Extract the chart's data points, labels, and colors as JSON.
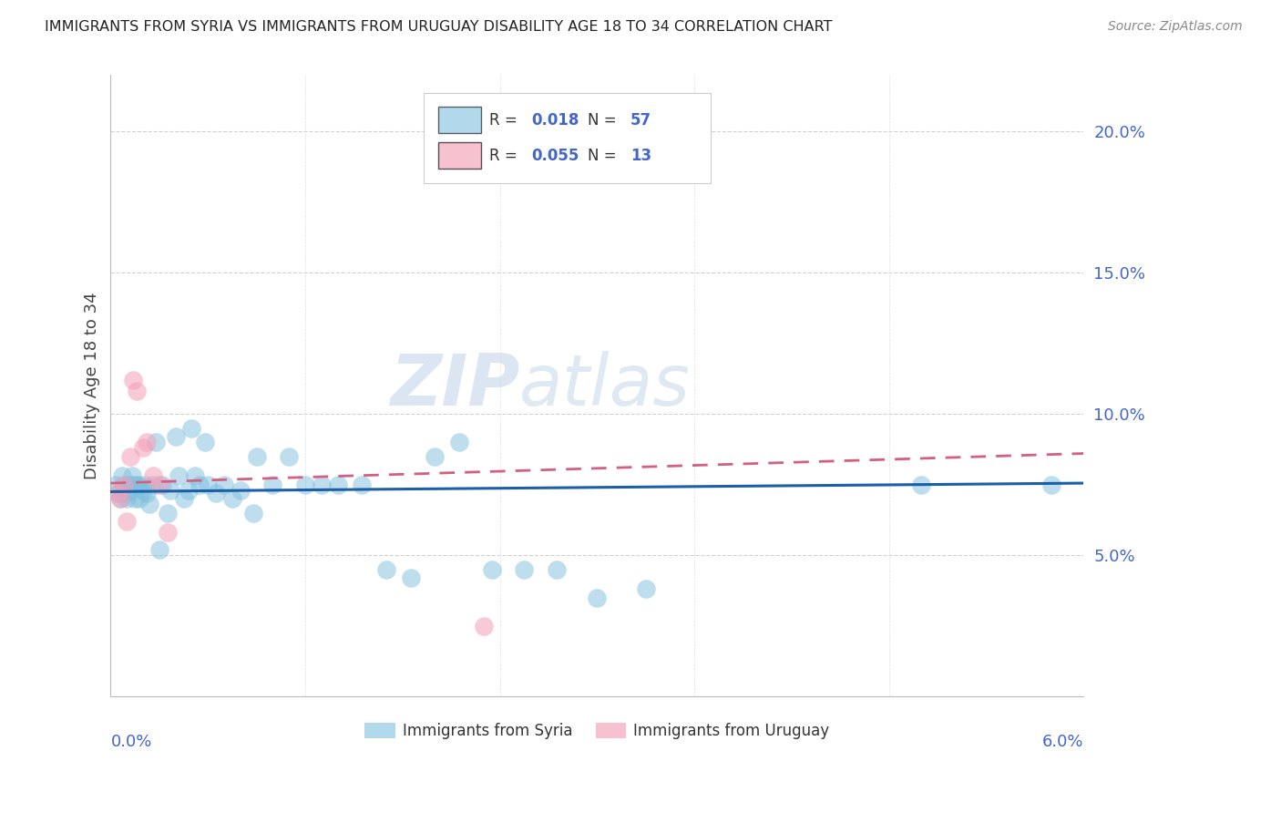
{
  "title": "IMMIGRANTS FROM SYRIA VS IMMIGRANTS FROM URUGUAY DISABILITY AGE 18 TO 34 CORRELATION CHART",
  "source": "Source: ZipAtlas.com",
  "ylabel": "Disability Age 18 to 34",
  "watermark_zip": "ZIP",
  "watermark_atlas": "atlas",
  "xlim": [
    0.0,
    6.0
  ],
  "ylim": [
    0.0,
    22.0
  ],
  "yticks": [
    5.0,
    10.0,
    15.0,
    20.0
  ],
  "syria_R": 0.018,
  "syria_N": 57,
  "uruguay_R": 0.055,
  "uruguay_N": 13,
  "syria_color": "#7fbfdf",
  "uruguay_color": "#f4a0b8",
  "syria_line_color": "#1a5fa8",
  "uruguay_line_color": "#d45f80",
  "axis_color": "#4466cc",
  "syria_trend_x0": 0.0,
  "syria_trend_y0": 7.25,
  "syria_trend_x1": 6.0,
  "syria_trend_y1": 7.55,
  "uruguay_trend_x0": 0.0,
  "uruguay_trend_y0": 7.55,
  "uruguay_trend_x1": 6.0,
  "uruguay_trend_y1": 8.6,
  "syria_dots_x": [
    0.03,
    0.05,
    0.06,
    0.07,
    0.08,
    0.09,
    0.1,
    0.11,
    0.12,
    0.13,
    0.14,
    0.15,
    0.16,
    0.17,
    0.18,
    0.2,
    0.21,
    0.22,
    0.24,
    0.26,
    0.28,
    0.3,
    0.32,
    0.35,
    0.37,
    0.4,
    0.42,
    0.45,
    0.48,
    0.5,
    0.52,
    0.55,
    0.58,
    0.6,
    0.65,
    0.7,
    0.75,
    0.8,
    0.88,
    0.9,
    1.0,
    1.1,
    1.2,
    1.3,
    1.4,
    1.55,
    1.7,
    1.85,
    2.0,
    2.15,
    2.35,
    2.55,
    2.75,
    3.0,
    3.3,
    5.0,
    5.8
  ],
  "syria_dots_y": [
    7.5,
    7.2,
    7.0,
    7.8,
    7.5,
    7.2,
    7.0,
    7.5,
    7.3,
    7.8,
    7.5,
    7.0,
    7.5,
    7.5,
    7.0,
    7.3,
    7.5,
    7.2,
    6.8,
    7.5,
    9.0,
    5.2,
    7.5,
    6.5,
    7.3,
    9.2,
    7.8,
    7.0,
    7.3,
    9.5,
    7.8,
    7.5,
    9.0,
    7.5,
    7.2,
    7.5,
    7.0,
    7.3,
    6.5,
    8.5,
    7.5,
    8.5,
    7.5,
    7.5,
    7.5,
    7.5,
    4.5,
    4.2,
    8.5,
    9.0,
    4.5,
    4.5,
    4.5,
    3.5,
    3.8,
    7.5,
    7.5
  ],
  "uruguay_dots_x": [
    0.04,
    0.06,
    0.08,
    0.1,
    0.12,
    0.14,
    0.16,
    0.2,
    0.22,
    0.26,
    0.3,
    0.35,
    2.3
  ],
  "uruguay_dots_y": [
    7.2,
    7.0,
    7.5,
    6.2,
    8.5,
    11.2,
    10.8,
    8.8,
    9.0,
    7.8,
    7.5,
    5.8,
    2.5
  ]
}
